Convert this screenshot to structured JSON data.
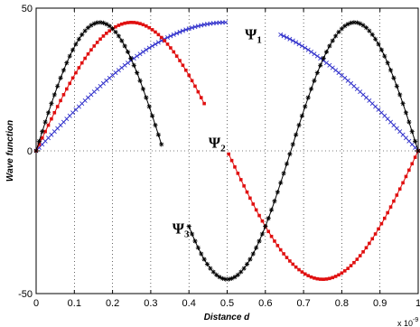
{
  "chart_data": {
    "type": "line",
    "xlabel": "Distance d",
    "ylabel": "Wave function",
    "x_multiplier": "x 10",
    "x_multiplier_exp": "-9",
    "xlim": [
      0,
      1
    ],
    "ylim": [
      -50,
      50
    ],
    "x_scale_note": "x values shown in units of 1e-9",
    "x_ticks": [
      "0",
      "0.1",
      "0.2",
      "0.3",
      "0.4",
      "0.5",
      "0.6",
      "0.7",
      "0.8",
      "0.9",
      "1"
    ],
    "y_ticks": [
      "50",
      "0",
      "-50"
    ],
    "grid": true,
    "amplitude": 45,
    "series": [
      {
        "name": "Ψ1",
        "label_main": "Ψ",
        "label_sub": "1",
        "n": 1,
        "color": "#3333cc",
        "marker": "x",
        "gap": [
          0.5,
          0.64
        ],
        "label_at": [
          0.57,
          41
        ]
      },
      {
        "name": "Ψ2",
        "label_main": "Ψ",
        "label_sub": "2",
        "n": 2,
        "color": "#e01010",
        "marker": "square",
        "gap": [
          0.445,
          0.5
        ],
        "label_at": [
          0.475,
          3
        ]
      },
      {
        "name": "Ψ3",
        "label_main": "Ψ",
        "label_sub": "3",
        "n": 3,
        "color": "#000000",
        "marker": "star",
        "gap": [
          0.33,
          0.4
        ],
        "label_at": [
          0.38,
          -27
        ]
      }
    ]
  }
}
